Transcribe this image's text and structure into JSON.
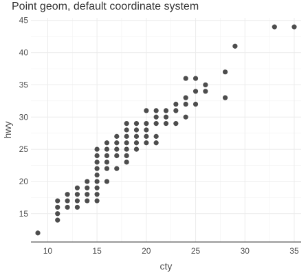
{
  "chart_data": {
    "type": "scatter",
    "title": "Point geom, default coordinate system",
    "xlabel": "cty",
    "ylabel": "hwy",
    "xlim": [
      8.3,
      35.7
    ],
    "ylim": [
      10.6,
      45.4
    ],
    "xticks": [
      10,
      15,
      20,
      25,
      30,
      35
    ],
    "yticks": [
      15,
      20,
      25,
      30,
      35,
      40,
      45
    ],
    "grid": true,
    "point_color": "#4d4d4d",
    "points": [
      [
        9,
        12
      ],
      [
        11,
        14
      ],
      [
        11,
        15
      ],
      [
        11,
        16
      ],
      [
        11,
        17
      ],
      [
        12,
        16
      ],
      [
        12,
        17
      ],
      [
        12,
        18
      ],
      [
        13,
        16
      ],
      [
        13,
        17
      ],
      [
        13,
        18
      ],
      [
        13,
        19
      ],
      [
        14,
        17
      ],
      [
        14,
        18
      ],
      [
        14,
        19
      ],
      [
        14,
        20
      ],
      [
        15,
        17
      ],
      [
        15,
        18
      ],
      [
        15,
        19
      ],
      [
        15,
        20
      ],
      [
        15,
        21
      ],
      [
        15,
        22
      ],
      [
        15,
        23
      ],
      [
        15,
        24
      ],
      [
        15,
        25
      ],
      [
        16,
        20
      ],
      [
        16,
        22
      ],
      [
        16,
        23
      ],
      [
        16,
        24
      ],
      [
        16,
        25
      ],
      [
        16,
        26
      ],
      [
        17,
        22
      ],
      [
        17,
        24
      ],
      [
        17,
        25
      ],
      [
        17,
        26
      ],
      [
        17,
        27
      ],
      [
        18,
        23
      ],
      [
        18,
        24
      ],
      [
        18,
        25
      ],
      [
        18,
        26
      ],
      [
        18,
        27
      ],
      [
        18,
        28
      ],
      [
        18,
        29
      ],
      [
        19,
        25
      ],
      [
        19,
        26
      ],
      [
        19,
        27
      ],
      [
        19,
        28
      ],
      [
        19,
        29
      ],
      [
        20,
        26
      ],
      [
        20,
        27
      ],
      [
        20,
        28
      ],
      [
        20,
        29
      ],
      [
        20,
        31
      ],
      [
        21,
        26
      ],
      [
        21,
        27
      ],
      [
        21,
        29
      ],
      [
        21,
        30
      ],
      [
        21,
        31
      ],
      [
        22,
        29
      ],
      [
        22,
        30
      ],
      [
        22,
        31
      ],
      [
        23,
        29
      ],
      [
        23,
        31
      ],
      [
        23,
        32
      ],
      [
        24,
        30
      ],
      [
        24,
        32
      ],
      [
        24,
        33
      ],
      [
        24,
        36
      ],
      [
        25,
        32
      ],
      [
        25,
        34
      ],
      [
        25,
        36
      ],
      [
        26,
        34
      ],
      [
        26,
        35
      ],
      [
        28,
        33
      ],
      [
        28,
        37
      ],
      [
        29,
        41
      ],
      [
        33,
        44
      ],
      [
        35,
        44
      ]
    ]
  }
}
